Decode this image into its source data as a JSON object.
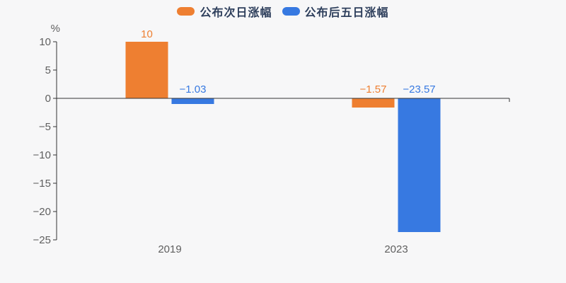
{
  "page": {
    "background": "#f7f7f8"
  },
  "chart_data": {
    "type": "bar",
    "title": "",
    "categories": [
      "2019",
      "2023"
    ],
    "series": [
      {
        "name": "公布次日涨幅",
        "color": "#ee7f31",
        "values": [
          10,
          -1.57
        ],
        "value_labels": [
          "10",
          "−1.57"
        ]
      },
      {
        "name": "公布后五日涨幅",
        "color": "#3779e1",
        "values": [
          -1.03,
          -23.57
        ],
        "value_labels": [
          "−1.03",
          "−23.57"
        ]
      }
    ],
    "xlabel": "",
    "ylabel": "%",
    "ylim": [
      -25,
      10
    ],
    "yticks": [
      10,
      5,
      0,
      -5,
      -10,
      -15,
      -20,
      -25
    ],
    "ytick_labels": [
      "10",
      "5",
      "0",
      "−5",
      "−10",
      "−15",
      "−20",
      "−25"
    ],
    "grid": false,
    "legend_position": "top",
    "axis_color": "#333333",
    "tick_label_color": "#5f5f5f",
    "legend_text_color": "#2e3f5c"
  }
}
